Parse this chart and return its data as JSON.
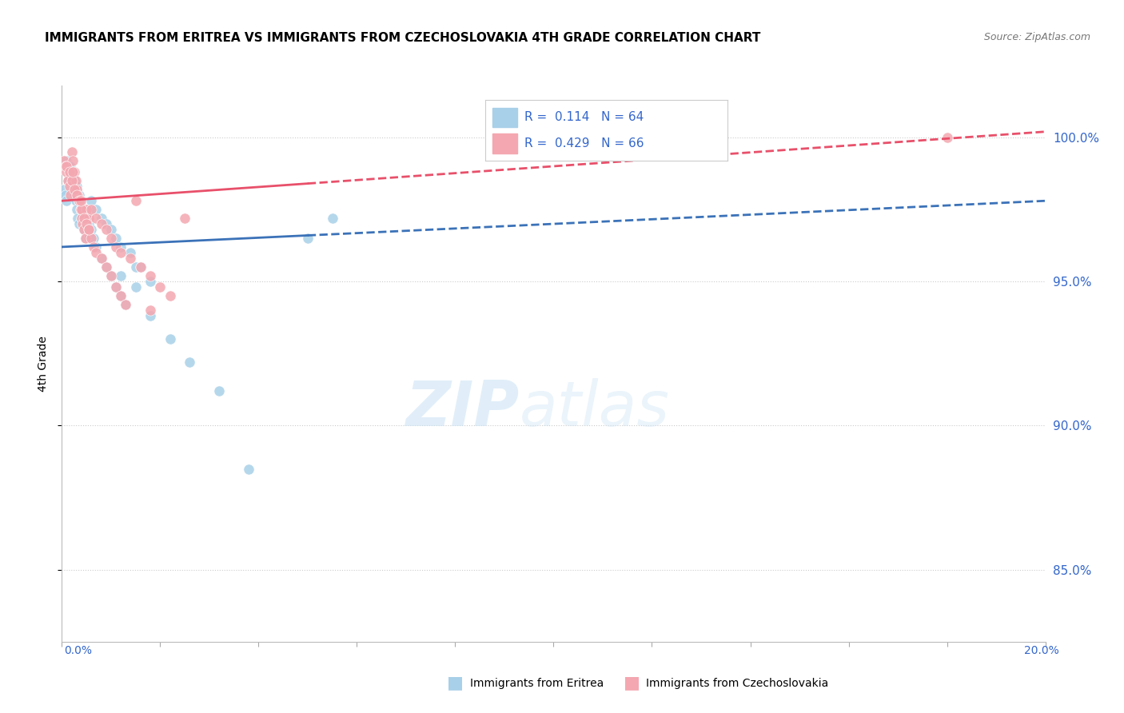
{
  "title": "IMMIGRANTS FROM ERITREA VS IMMIGRANTS FROM CZECHOSLOVAKIA 4TH GRADE CORRELATION CHART",
  "source": "Source: ZipAtlas.com",
  "ylabel": "4th Grade",
  "xlim": [
    0.0,
    20.0
  ],
  "ylim": [
    82.5,
    101.8
  ],
  "R_eritrea": 0.114,
  "N_eritrea": 64,
  "R_czech": 0.429,
  "N_czech": 66,
  "color_eritrea": "#a8d0e8",
  "color_czech": "#f4a7b0",
  "color_eritrea_line": "#3b72b8",
  "color_czech_line": "#e8506a",
  "legend_text_color": "#3366cc",
  "yticks": [
    85.0,
    90.0,
    95.0,
    100.0
  ],
  "eritrea_x": [
    0.05,
    0.08,
    0.1,
    0.12,
    0.15,
    0.18,
    0.2,
    0.22,
    0.25,
    0.28,
    0.3,
    0.32,
    0.35,
    0.38,
    0.4,
    0.42,
    0.45,
    0.48,
    0.5,
    0.55,
    0.1,
    0.15,
    0.2,
    0.25,
    0.3,
    0.35,
    0.4,
    0.45,
    0.5,
    0.55,
    0.6,
    0.65,
    0.7,
    0.8,
    0.9,
    1.0,
    1.1,
    1.2,
    1.3,
    1.5,
    0.6,
    0.7,
    0.8,
    0.9,
    1.0,
    1.1,
    1.2,
    1.4,
    1.6,
    1.8,
    1.2,
    1.5,
    1.8,
    2.2,
    2.6,
    3.2,
    3.8,
    5.0,
    5.5
  ],
  "eritrea_y": [
    98.2,
    98.0,
    97.8,
    98.5,
    98.8,
    99.0,
    98.5,
    98.2,
    98.0,
    97.8,
    97.5,
    97.2,
    97.0,
    97.5,
    97.2,
    97.0,
    96.8,
    96.5,
    97.0,
    96.5,
    99.2,
    99.0,
    98.8,
    98.5,
    98.3,
    98.0,
    97.8,
    97.5,
    97.3,
    97.0,
    96.8,
    96.5,
    96.2,
    95.8,
    95.5,
    95.2,
    94.8,
    94.5,
    94.2,
    95.5,
    97.8,
    97.5,
    97.2,
    97.0,
    96.8,
    96.5,
    96.2,
    96.0,
    95.5,
    95.0,
    95.2,
    94.8,
    93.8,
    93.0,
    92.2,
    91.2,
    88.5,
    96.5,
    97.2
  ],
  "czech_x": [
    0.05,
    0.08,
    0.1,
    0.12,
    0.15,
    0.18,
    0.2,
    0.22,
    0.25,
    0.28,
    0.3,
    0.32,
    0.35,
    0.38,
    0.4,
    0.42,
    0.45,
    0.48,
    0.5,
    0.55,
    0.1,
    0.15,
    0.2,
    0.25,
    0.3,
    0.35,
    0.4,
    0.45,
    0.5,
    0.55,
    0.6,
    0.65,
    0.7,
    0.8,
    0.9,
    1.0,
    1.1,
    1.2,
    1.3,
    1.5,
    0.6,
    0.7,
    0.8,
    0.9,
    1.0,
    1.1,
    1.2,
    1.4,
    1.6,
    1.8,
    2.0,
    2.2,
    2.5,
    0.22,
    0.38,
    0.55,
    1.8,
    18.0
  ],
  "czech_y": [
    99.2,
    99.0,
    98.8,
    98.5,
    98.3,
    98.0,
    99.5,
    99.2,
    98.8,
    98.5,
    98.2,
    98.0,
    97.8,
    97.5,
    97.2,
    97.0,
    96.8,
    96.5,
    97.5,
    97.2,
    99.0,
    98.8,
    98.5,
    98.2,
    98.0,
    97.8,
    97.5,
    97.2,
    97.0,
    96.8,
    96.5,
    96.2,
    96.0,
    95.8,
    95.5,
    95.2,
    94.8,
    94.5,
    94.2,
    97.8,
    97.5,
    97.2,
    97.0,
    96.8,
    96.5,
    96.2,
    96.0,
    95.8,
    95.5,
    95.2,
    94.8,
    94.5,
    97.2,
    98.8,
    97.8,
    96.8,
    94.0,
    100.0
  ],
  "trend_eritrea_y0": 96.2,
  "trend_eritrea_y1": 97.8,
  "trend_czech_y0": 97.8,
  "trend_czech_y1": 100.2
}
